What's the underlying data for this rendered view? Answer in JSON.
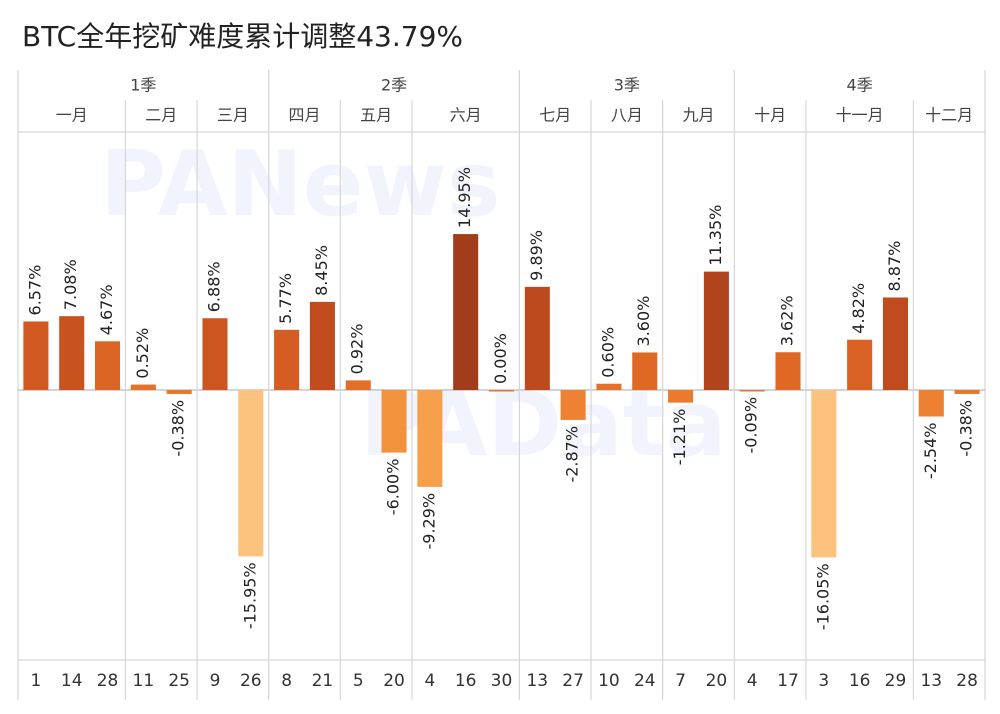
{
  "chart_data": {
    "type": "bar",
    "title": "BTC全年挖矿难度累计调整43.79%",
    "quarters": [
      {
        "label": "1季",
        "months": [
          {
            "label": "一月",
            "categories": [
              "1",
              "14",
              "28"
            ],
            "values": [
              6.57,
              7.08,
              4.67
            ],
            "value_labels": [
              "6.57%",
              "7.08%",
              "4.67%"
            ],
            "colors": [
              "#d25a22",
              "#c9531f",
              "#db6524"
            ]
          },
          {
            "label": "二月",
            "categories": [
              "11",
              "25"
            ],
            "values": [
              0.52,
              -0.38
            ],
            "value_labels": [
              "0.52%",
              "-0.38%"
            ],
            "colors": [
              "#e57028",
              "#e8762b"
            ]
          },
          {
            "label": "三月",
            "categories": [
              "9",
              "26"
            ],
            "values": [
              6.88,
              -15.95
            ],
            "value_labels": [
              "6.88%",
              "-15.95%"
            ],
            "colors": [
              "#cc5520",
              "#fdc27d"
            ]
          }
        ]
      },
      {
        "label": "2季",
        "months": [
          {
            "label": "四月",
            "categories": [
              "8",
              "21"
            ],
            "values": [
              5.77,
              8.45
            ],
            "value_labels": [
              "5.77%",
              "8.45%"
            ],
            "colors": [
              "#d55c23",
              "#c24c1e"
            ]
          },
          {
            "label": "五月",
            "categories": [
              "5",
              "20"
            ],
            "values": [
              0.92,
              -6.0
            ],
            "value_labels": [
              "0.92%",
              "-6.00%"
            ],
            "colors": [
              "#e36e27",
              "#f3923d"
            ]
          },
          {
            "label": "六月",
            "categories": [
              "4",
              "16",
              "30"
            ],
            "values": [
              -9.29,
              14.95,
              0.0
            ],
            "value_labels": [
              "-9.29%",
              "14.95%",
              "0.00%"
            ],
            "colors": [
              "#f6a04c",
              "#a23d1c",
              "#e8762b"
            ]
          }
        ]
      },
      {
        "label": "3季",
        "months": [
          {
            "label": "七月",
            "categories": [
              "13",
              "27"
            ],
            "values": [
              9.89,
              -2.87
            ],
            "value_labels": [
              "9.89%",
              "-2.87%"
            ],
            "colors": [
              "#bd4a1e",
              "#ee8232"
            ]
          },
          {
            "label": "八月",
            "categories": [
              "10",
              "24"
            ],
            "values": [
              0.6,
              3.6
            ],
            "value_labels": [
              "0.60%",
              "3.60%"
            ],
            "colors": [
              "#e57028",
              "#df6825"
            ]
          },
          {
            "label": "九月",
            "categories": [
              "7",
              "20"
            ],
            "values": [
              -1.21,
              11.35
            ],
            "value_labels": [
              "-1.21%",
              "11.35%"
            ],
            "colors": [
              "#ea7a2d",
              "#b2441d"
            ]
          }
        ]
      },
      {
        "label": "4季",
        "months": [
          {
            "label": "十月",
            "categories": [
              "4",
              "17"
            ],
            "values": [
              -0.09,
              3.62
            ],
            "value_labels": [
              "-0.09%",
              "3.62%"
            ],
            "colors": [
              "#e8762b",
              "#df6825"
            ]
          },
          {
            "label": "十一月",
            "categories": [
              "3",
              "16",
              "29"
            ],
            "values": [
              -16.05,
              4.82,
              8.87
            ],
            "value_labels": [
              "-16.05%",
              "4.82%",
              "8.87%"
            ],
            "colors": [
              "#fdc27d",
              "#d96224",
              "#c04b1e"
            ]
          },
          {
            "label": "十二月",
            "categories": [
              "13",
              "28"
            ],
            "values": [
              -2.54,
              -0.38
            ],
            "value_labels": [
              "-2.54%",
              "-0.38%"
            ],
            "colors": [
              "#ed8031",
              "#e8762b"
            ]
          }
        ]
      }
    ]
  }
}
